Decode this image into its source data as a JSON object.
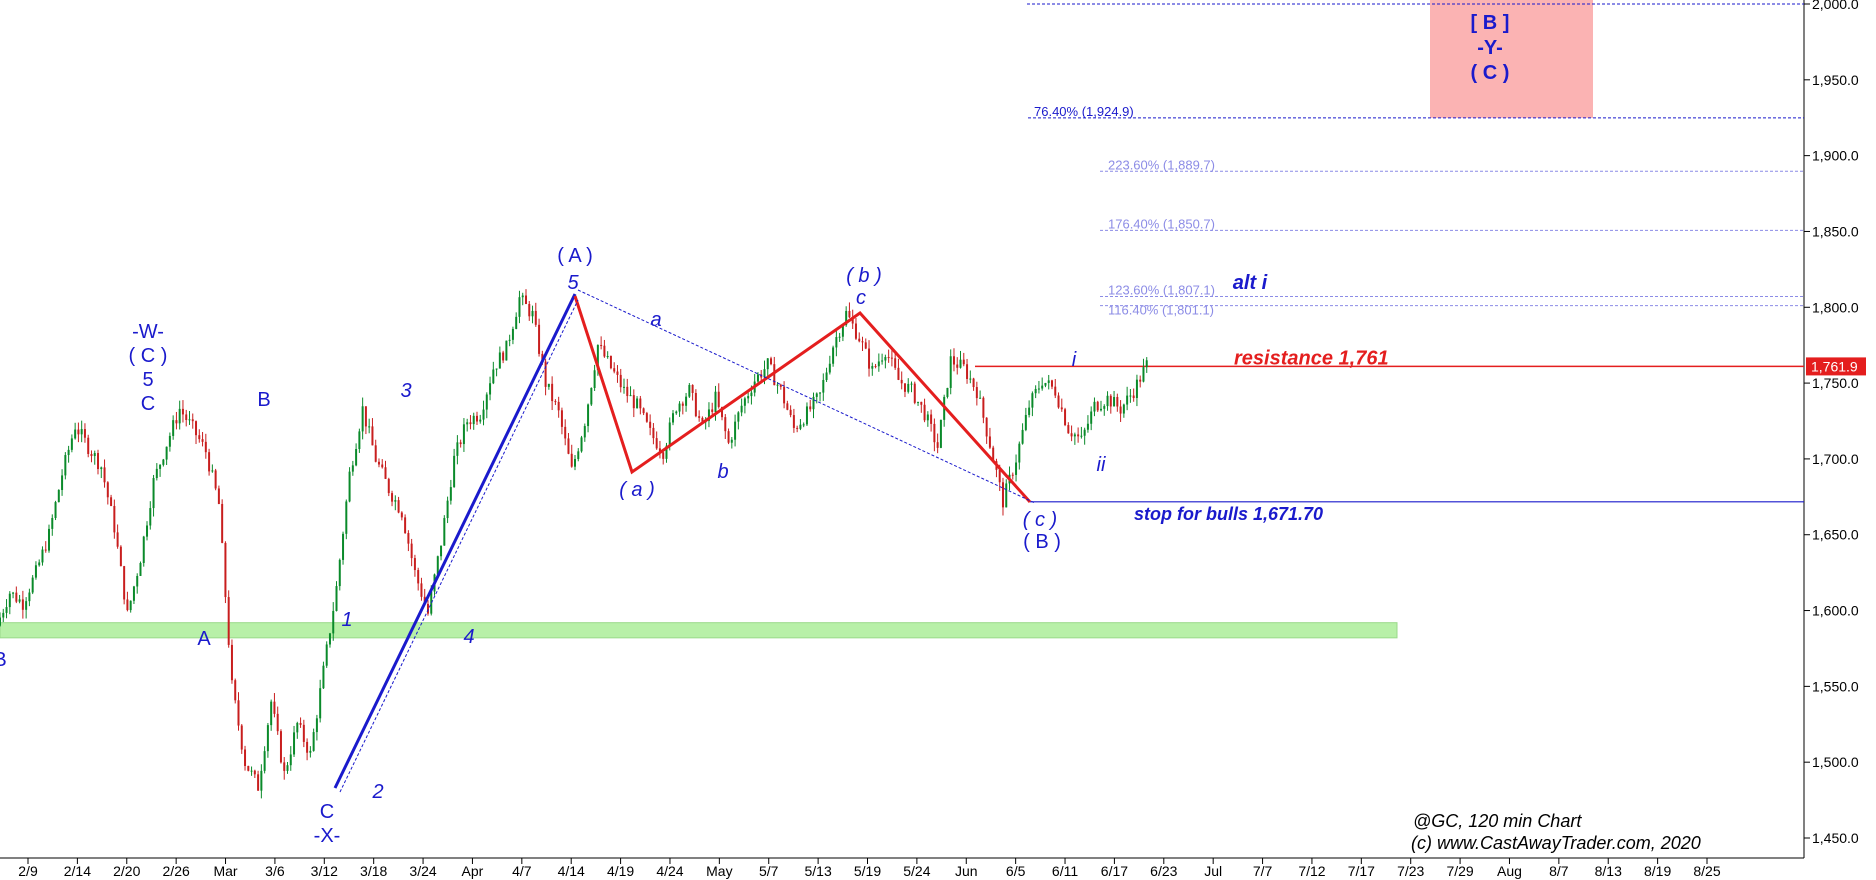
{
  "chart_data": {
    "type": "candlestick",
    "symbol_label": "@GC, 120 min Chart",
    "copyright": "(c) www.CastAwayTrader.com, 2020",
    "x_ticks": [
      "2/9",
      "2/14",
      "2/20",
      "2/26",
      "Mar",
      "3/6",
      "3/12",
      "3/18",
      "3/24",
      "Apr",
      "4/7",
      "4/14",
      "4/19",
      "4/24",
      "May",
      "5/7",
      "5/13",
      "5/19",
      "5/24",
      "Jun",
      "6/5",
      "6/11",
      "6/17",
      "6/23",
      "Jul",
      "7/7",
      "7/12",
      "7/17",
      "7/23",
      "7/29",
      "Aug",
      "8/7",
      "8/13",
      "8/19",
      "8/25"
    ],
    "y_ticks": [
      "2,000.0",
      "1,950.0",
      "1,900.0",
      "1,850.0",
      "1,800.0",
      "1,750.0",
      "1,700.0",
      "1,650.0",
      "1,600.0",
      "1,550.0",
      "1,500.0",
      "1,450.0"
    ],
    "ylim": [
      1438,
      2004
    ],
    "last_price": "1,761.9",
    "price_path": [
      1590,
      1612,
      1605,
      1625,
      1650,
      1690,
      1722,
      1708,
      1695,
      1655,
      1597,
      1635,
      1685,
      1710,
      1733,
      1720,
      1705,
      1670,
      1550,
      1500,
      1484,
      1540,
      1492,
      1525,
      1505,
      1560,
      1615,
      1690,
      1733,
      1700,
      1680,
      1665,
      1625,
      1598,
      1645,
      1700,
      1725,
      1730,
      1760,
      1773,
      1806,
      1795,
      1750,
      1730,
      1692,
      1725,
      1775,
      1760,
      1745,
      1735,
      1717,
      1705,
      1735,
      1745,
      1720,
      1740,
      1710,
      1735,
      1752,
      1762,
      1745,
      1720,
      1730,
      1742,
      1775,
      1796,
      1780,
      1758,
      1772,
      1752,
      1745,
      1730,
      1708,
      1765,
      1760,
      1745,
      1710,
      1672,
      1700,
      1735,
      1752,
      1745,
      1720,
      1712,
      1735,
      1740,
      1733,
      1745,
      1762
    ],
    "fib_levels": [
      {
        "label": "76.40% (1,924.9)",
        "value": 1924.9,
        "color": "#1a1acc"
      },
      {
        "label": "223.60% (1,889.7)",
        "value": 1889.7,
        "color": "#8c8ce6"
      },
      {
        "label": "176.40% (1,850.7)",
        "value": 1850.7,
        "color": "#8c8ce6"
      },
      {
        "label": "123.60% (1,807.1)",
        "value": 1807.1,
        "color": "#8c8ce6"
      },
      {
        "label": "116.40% (1,801.1)",
        "value": 1801.1,
        "color": "#8c8ce6"
      }
    ],
    "lines": [
      {
        "label": "resistance 1,761",
        "value": 1761,
        "color": "#e41e1e"
      },
      {
        "label": "stop for bulls 1,671.70",
        "value": 1671.7,
        "color": "#1a1acc"
      }
    ],
    "top_line_value": 2000,
    "support_zone": [
      1582,
      1592
    ],
    "target_box": {
      "labels": [
        "[ B ]",
        "-Y-",
        "( C )"
      ],
      "top": 2004,
      "bottom": 1924.9
    },
    "wave_labels": {
      "minus_w": "-W-",
      "c_paren": "( C )",
      "five": "5",
      "c": "C",
      "b_big": "B",
      "a_big": "A",
      "b_edge": "B",
      "c_low": "C",
      "x_low": "-X-",
      "one": "1",
      "two": "2",
      "three": "3",
      "four": "4",
      "a_big_paren": "( A )",
      "five_top": "5",
      "a_small_paren": "( a )",
      "a_small": "a",
      "b_small": "b",
      "b_small_paren": "( b )",
      "c_small": "c",
      "c_small_paren": "( c )",
      "b_big_paren": "( B )",
      "i_small": "i",
      "ii_small": "ii",
      "alt_i": "alt i"
    }
  },
  "colors": {
    "blue": "#1a1acc",
    "red": "#e41e1e",
    "green_zone": "#b8f0a8",
    "target_box": "#fbb3b3"
  }
}
